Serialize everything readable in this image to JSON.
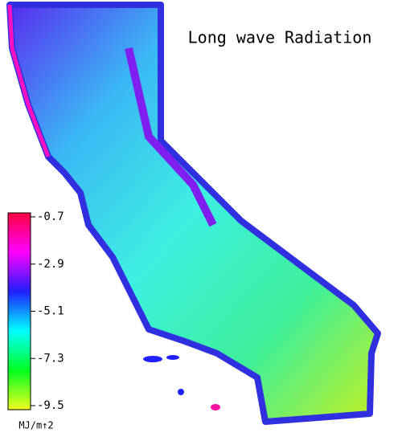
{
  "title": "Long wave Radiation",
  "colorbar": {
    "lim": [
      -9.5,
      -0.7
    ],
    "ticks": [
      -0.7,
      -2.9,
      -5.1,
      -7.3,
      -9.5
    ],
    "label": "MJ/m↑2"
  }
}
